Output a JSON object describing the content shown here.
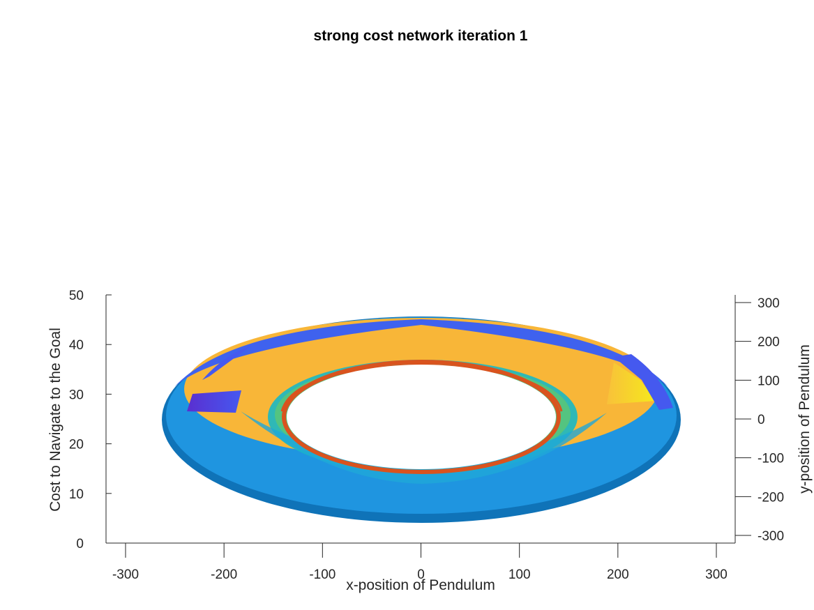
{
  "chart_data": {
    "type": "surface",
    "title": "strong cost network iteration 1",
    "xlabel": "x-position of Pendulum",
    "ylabel": "y-position of Pendulum",
    "zlabel": "Cost to Navigate to the Goal",
    "xlim": [
      -320,
      320
    ],
    "ylim": [
      -320,
      320
    ],
    "zlim": [
      0,
      50
    ],
    "x_ticks": [
      -300,
      -200,
      -100,
      0,
      100,
      200,
      300
    ],
    "y_ticks": [
      -300,
      -200,
      -100,
      0,
      100,
      200,
      300
    ],
    "z_ticks": [
      0,
      10,
      20,
      30,
      40,
      50
    ],
    "annulus": {
      "inner_radius": 140,
      "outer_radius": 265
    },
    "colormap": "parula",
    "colors": {
      "ring_rim": "#0f73b8",
      "inner_edge": "#d9531e",
      "low": "#3d3df0",
      "mid_low": "#1ba3df",
      "mid": "#12bdb9",
      "mid_high": "#8ccf4a",
      "high": "#f8b638",
      "max": "#f5e91c"
    },
    "grid": false
  }
}
